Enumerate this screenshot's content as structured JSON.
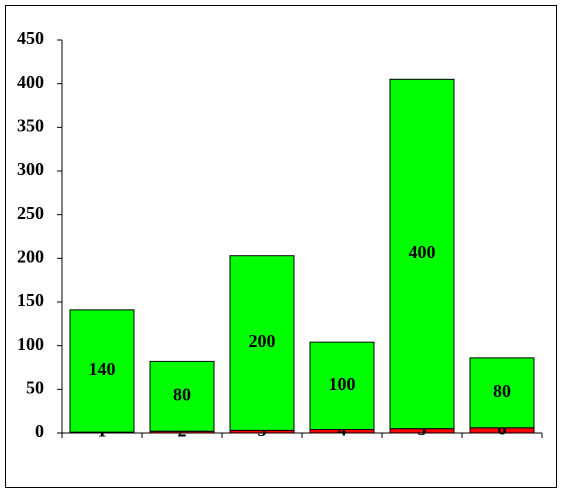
{
  "chart_data": {
    "type": "stacked-bar",
    "categories": [
      null,
      null,
      null,
      null,
      null,
      null
    ],
    "series": [
      {
        "color": "#ff0000",
        "values": [
          1,
          2,
          3,
          4,
          5,
          6
        ]
      },
      {
        "color": "#00ff00",
        "values": [
          140,
          80,
          200,
          100,
          400,
          80
        ]
      }
    ],
    "ylim": [
      0,
      450
    ],
    "yticks": [
      0,
      50,
      100,
      150,
      200,
      250,
      300,
      350,
      400,
      450
    ],
    "grid": false
  }
}
